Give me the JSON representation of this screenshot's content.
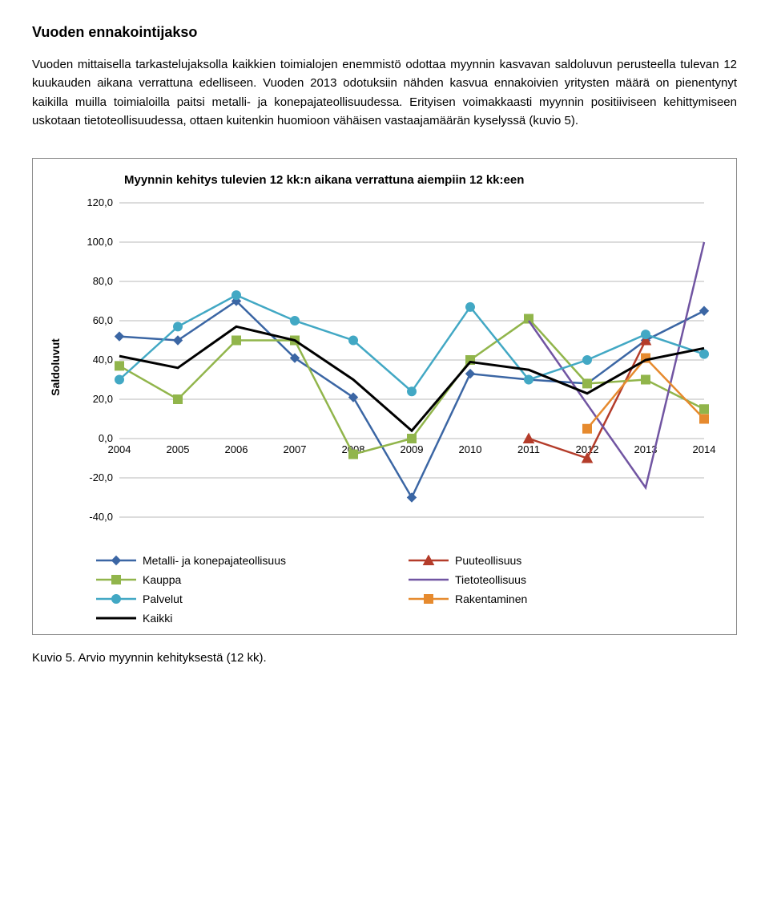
{
  "heading": "Vuoden ennakointijakso",
  "paragraph": "Vuoden mittaisella tarkastelujaksolla kaikkien toimialojen enemmistö odottaa myynnin kasvavan saldoluvun perusteella tulevan 12 kuukauden aikana verrattuna edelliseen. Vuoden 2013 odotuksiin nähden kasvua ennakoivien yritysten määrä on pienentynyt kaikilla muilla toimialoilla paitsi metalli- ja konepajateollisuudessa. Erityisen voimakkaasti myynnin positiiviseen kehittymiseen uskotaan tietoteollisuudessa, ottaen kuitenkin huomioon vähäisen vastaajamäärän kyselyssä (kuvio 5).",
  "chart": {
    "title": "Myynnin kehitys tulevien 12 kk:n aikana verrattuna aiempiin 12 kk:een",
    "ylabel": "Saldoluvut",
    "ylim": [
      -40,
      120
    ],
    "ytick_step": 20,
    "categories": [
      "2004",
      "2005",
      "2006",
      "2007",
      "2008",
      "2009",
      "2010",
      "2011",
      "2012",
      "2013",
      "2014"
    ],
    "background_color": "#ffffff",
    "grid_color": "#b8b8b8",
    "series": [
      {
        "name": "Metalli- ja konepajateollisuus",
        "color": "#3b66a4",
        "marker": "diamond",
        "data": [
          52,
          50,
          70,
          41,
          21,
          -30,
          33,
          30,
          28,
          50,
          65
        ]
      },
      {
        "name": "Puuteollisuus",
        "color": "#b43c2a",
        "marker": "triangle",
        "data": [
          null,
          null,
          null,
          null,
          null,
          null,
          null,
          0,
          -10,
          50,
          null
        ]
      },
      {
        "name": "Kauppa",
        "color": "#91b54b",
        "marker": "square",
        "data": [
          37,
          20,
          50,
          50,
          -8,
          0,
          40,
          61,
          28,
          30,
          15
        ]
      },
      {
        "name": "Tietoteollisuus",
        "color": "#7155a2",
        "marker": "none",
        "data": [
          null,
          null,
          null,
          null,
          null,
          null,
          null,
          60,
          null,
          -25,
          100
        ]
      },
      {
        "name": "Palvelut",
        "color": "#42a8c4",
        "marker": "circle",
        "data": [
          30,
          57,
          73,
          60,
          50,
          24,
          67,
          30,
          40,
          53,
          43
        ]
      },
      {
        "name": "Rakentaminen",
        "color": "#e68a2e",
        "marker": "square",
        "data": [
          null,
          null,
          null,
          null,
          null,
          null,
          null,
          null,
          5,
          41,
          10
        ]
      },
      {
        "name": "Kaikki",
        "color": "#000000",
        "marker": "none",
        "data": [
          42,
          36,
          57,
          50,
          30,
          4,
          39,
          35,
          23,
          40,
          46
        ],
        "lineWidth": 3
      }
    ]
  },
  "caption": "Kuvio 5. Arvio myynnin kehityksestä (12 kk)."
}
